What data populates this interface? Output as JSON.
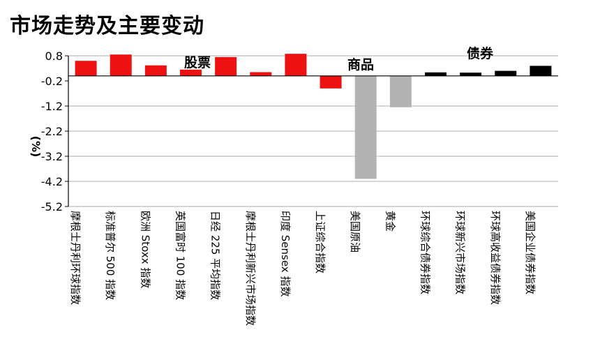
{
  "chart_data": {
    "type": "bar",
    "title": "市场走势及主要变动",
    "ylabel": "(%)",
    "xlabel": "",
    "yticks": [
      0.8,
      -0.2,
      -1.2,
      -2.2,
      -3.2,
      -4.2,
      -5.2
    ],
    "ytick_labels": [
      "0.8",
      "-0.2",
      "-1.2",
      "-2.2",
      "-3.2",
      "-4.2",
      "-5.2"
    ],
    "ylim": [
      -5.2,
      0.8
    ],
    "grid": true,
    "groups": [
      {
        "label": "股票",
        "span": [
          0,
          6
        ]
      },
      {
        "label": "商品",
        "span": [
          7,
          9
        ]
      },
      {
        "label": "债券",
        "span": [
          10,
          13
        ]
      }
    ],
    "categories": [
      "摩根士丹利环球指数",
      "标准普尔 500 指数",
      "欧洲 Stoxx 指数",
      "英国富时 100 指数",
      "日经 225 平均指数",
      "摩根士丹利新兴市场指数",
      "印度 Sensex 指数",
      "上证综合指数",
      "美国原油",
      "黄金",
      "环球综合债券指数",
      "环球新兴市场指数",
      "环球高收益债券指数",
      "美国企业债券指数"
    ],
    "values": [
      0.6,
      0.85,
      0.42,
      0.25,
      0.75,
      0.15,
      0.88,
      -0.5,
      -4.1,
      -1.25,
      0.14,
      0.13,
      0.2,
      0.4
    ],
    "colors": [
      "#ee1111",
      "#ee1111",
      "#ee1111",
      "#ee1111",
      "#ee1111",
      "#ee1111",
      "#ee1111",
      "#ee1111",
      "#b3b3b3",
      "#b3b3b3",
      "#000000",
      "#000000",
      "#000000",
      "#000000"
    ],
    "grid_color": "#bfbfbf"
  }
}
